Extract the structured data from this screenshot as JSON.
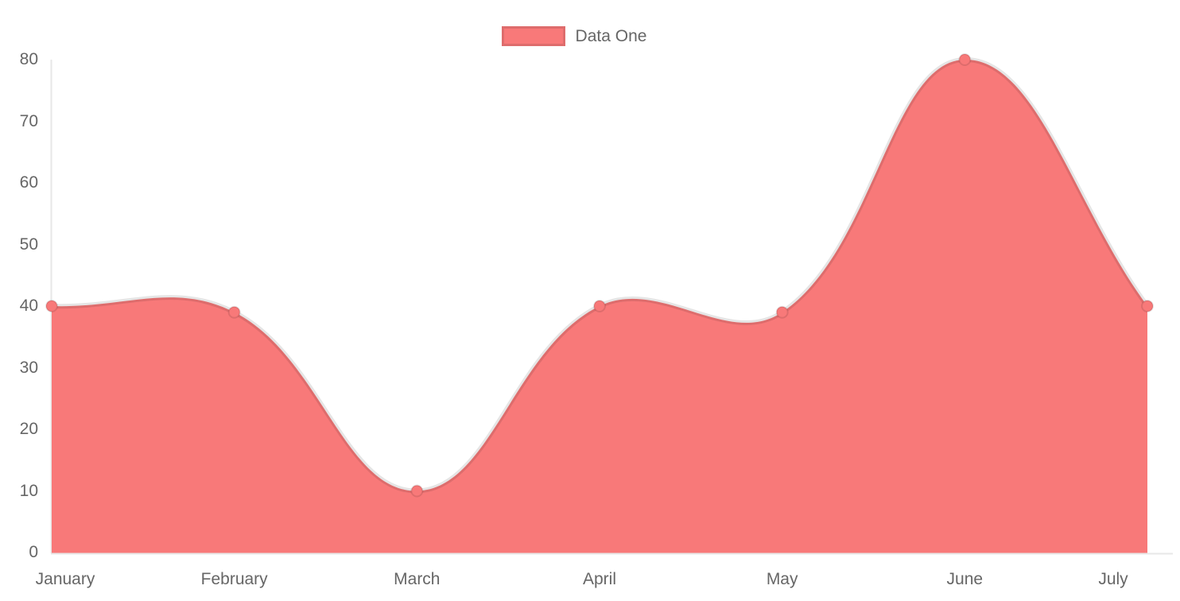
{
  "chart_data": {
    "type": "area",
    "title": "",
    "xlabel": "",
    "ylabel": "",
    "categories": [
      "January",
      "February",
      "March",
      "April",
      "May",
      "June",
      "July"
    ],
    "series": [
      {
        "name": "Data One",
        "values": [
          40,
          39,
          10,
          40,
          39,
          80,
          40
        ]
      }
    ],
    "ylim": [
      0,
      80
    ],
    "yticks": [
      0,
      10,
      20,
      30,
      40,
      50,
      60,
      70,
      80
    ],
    "grid": false,
    "legend_position": "top-center",
    "line_style": "smooth",
    "colors": {
      "fill": "#f87979",
      "stroke": "rgba(0,0,0,0.1)",
      "axis_line": "#e7e7e7",
      "tick_text": "#666666",
      "background": "#ffffff"
    }
  }
}
